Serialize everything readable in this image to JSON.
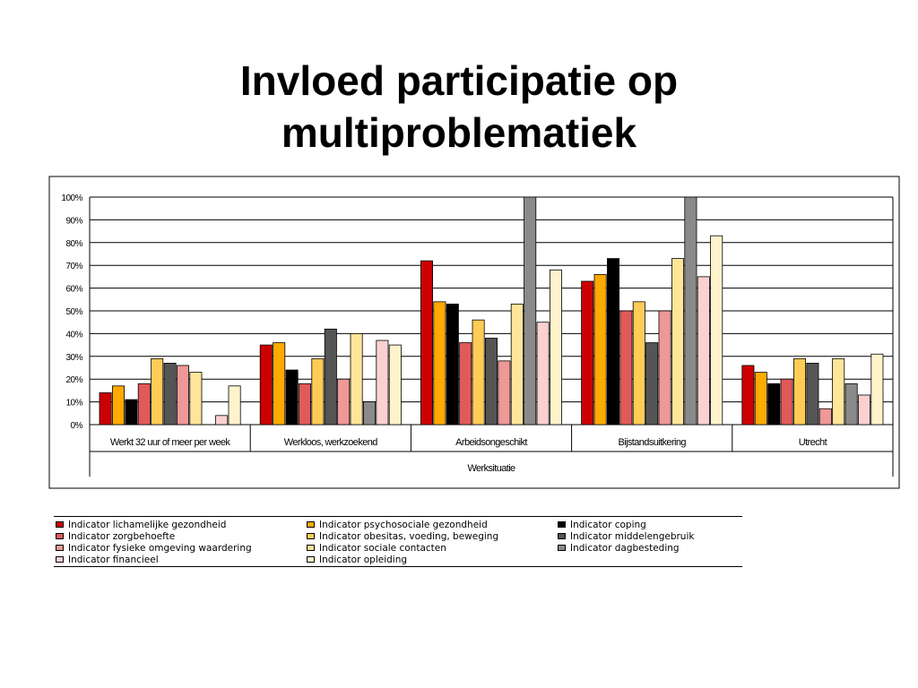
{
  "title": [
    "Invloed participatie op",
    "multiproblematiek"
  ],
  "chart_data": {
    "type": "bar",
    "xlabel": "Werksituatie",
    "ylabel": "",
    "ylim": [
      0,
      100
    ],
    "yticks": [
      "0%",
      "10%",
      "20%",
      "30%",
      "40%",
      "50%",
      "60%",
      "70%",
      "80%",
      "90%",
      "100%"
    ],
    "grid": true,
    "legend_position": "bottom",
    "categories": [
      "Werkt 32 uur of meer per week",
      "Werkloos, werkzoekend",
      "Arbeidsongeschikt",
      "Bijstandsuitkering",
      "Utrecht"
    ],
    "series": [
      {
        "name": "Indicator lichamelijke gezondheid",
        "color": "#cc0000",
        "values": [
          14,
          35,
          72,
          63,
          26
        ]
      },
      {
        "name": "Indicator psychosociale gezondheid",
        "color": "#ffaa00",
        "values": [
          17,
          36,
          54,
          66,
          23
        ]
      },
      {
        "name": "Indicator coping",
        "color": "#000000",
        "values": [
          11,
          24,
          53,
          73,
          18
        ]
      },
      {
        "name": "Indicator zorgbehoefte",
        "color": "#e05a5a",
        "values": [
          18,
          18,
          36,
          50,
          20
        ]
      },
      {
        "name": "Indicator obesitas, voeding, beweging",
        "color": "#ffcc55",
        "values": [
          29,
          29,
          46,
          54,
          29
        ]
      },
      {
        "name": "Indicator middelengebruik",
        "color": "#555555",
        "values": [
          27,
          42,
          38,
          36,
          27
        ]
      },
      {
        "name": "Indicator fysieke omgeving waardering",
        "color": "#ee9898",
        "values": [
          26,
          20,
          28,
          50,
          7
        ]
      },
      {
        "name": "Indicator sociale contacten",
        "color": "#ffe59a",
        "values": [
          23,
          40,
          53,
          73,
          29
        ]
      },
      {
        "name": "Indicator dagbesteding",
        "color": "#8a8a8a",
        "values": [
          0,
          10,
          100,
          100,
          18
        ]
      },
      {
        "name": "Indicator financieel",
        "color": "#fbd0d0",
        "values": [
          4,
          37,
          45,
          65,
          13
        ]
      },
      {
        "name": "Indicator opleiding",
        "color": "#fff3cc",
        "values": [
          17,
          35,
          68,
          83,
          31
        ]
      }
    ]
  },
  "legend": {
    "items": [
      {
        "label": "Indicator lichamelijke gezondheid",
        "color": "#cc0000"
      },
      {
        "label": "Indicator psychosociale gezondheid",
        "color": "#ffaa00"
      },
      {
        "label": "Indicator coping",
        "color": "#000000"
      },
      {
        "label": "Indicator zorgbehoefte",
        "color": "#e05a5a"
      },
      {
        "label": "Indicator obesitas, voeding, beweging",
        "color": "#ffcc55"
      },
      {
        "label": "Indicator middelengebruik",
        "color": "#555555"
      },
      {
        "label": "Indicator fysieke omgeving waardering",
        "color": "#ee9898"
      },
      {
        "label": "Indicator sociale contacten",
        "color": "#ffe59a"
      },
      {
        "label": "Indicator dagbesteding",
        "color": "#8a8a8a"
      },
      {
        "label": "Indicator financieel",
        "color": "#fbd0d0"
      },
      {
        "label": "Indicator opleiding",
        "color": "#fff3cc"
      }
    ]
  }
}
